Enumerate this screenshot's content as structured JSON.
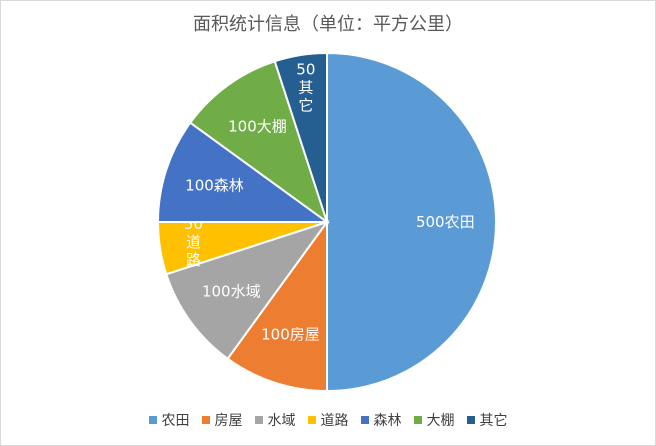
{
  "chart_data": {
    "type": "pie",
    "title": "面积统计信息（单位：平方公里）",
    "slices": [
      {
        "name": "农田",
        "value": 500,
        "color": "#5b9bd5",
        "label": "500农田"
      },
      {
        "name": "房屋",
        "value": 100,
        "color": "#ed7d31",
        "label": "100房屋"
      },
      {
        "name": "水域",
        "value": 100,
        "color": "#a5a5a5",
        "label": "100水域"
      },
      {
        "name": "道路",
        "value": 50,
        "color": "#ffc000",
        "label": "50道路"
      },
      {
        "name": "森林",
        "value": 100,
        "color": "#4472c4",
        "label": "100森林"
      },
      {
        "name": "大棚",
        "value": 100,
        "color": "#70ad47",
        "label": "100大棚"
      },
      {
        "name": "其它",
        "value": 50,
        "color": "#255e91",
        "label": "50其它"
      }
    ],
    "legend_position": "bottom"
  }
}
